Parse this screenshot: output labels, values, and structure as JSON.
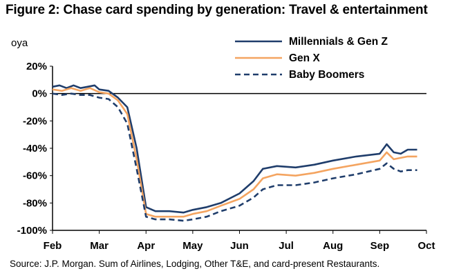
{
  "chart_data": {
    "type": "line",
    "title": "Figure 2: Chase card spending by generation: Travel & entertainment",
    "ylabel": "oya",
    "xlabel": "",
    "ylim": [
      -100,
      20
    ],
    "yticks": [
      20,
      0,
      -20,
      -40,
      -60,
      -80,
      -100
    ],
    "ytick_labels": [
      "20%",
      "0%",
      "-20%",
      "-40%",
      "-60%",
      "-80%",
      "-100%"
    ],
    "xticks": [
      "Feb",
      "Mar",
      "Apr",
      "May",
      "Jun",
      "Jul",
      "Aug",
      "Sep",
      "Oct"
    ],
    "xlim": [
      0,
      8
    ],
    "legend_position": "top-right",
    "zero_line": true,
    "grid": false,
    "source": "Source: J.P. Morgan. Sum of  Airlines, Lodging, Other T&E, and card-present Restaurants.",
    "series": [
      {
        "name": "Millennials & Gen Z",
        "color": "#1f3d6b",
        "style": "solid",
        "points": [
          [
            0,
            5
          ],
          [
            0.15,
            6
          ],
          [
            0.3,
            4
          ],
          [
            0.45,
            6
          ],
          [
            0.6,
            4
          ],
          [
            0.75,
            5
          ],
          [
            0.9,
            6
          ],
          [
            1.0,
            3
          ],
          [
            1.2,
            2
          ],
          [
            1.4,
            -3
          ],
          [
            1.6,
            -10
          ],
          [
            1.8,
            -40
          ],
          [
            2.0,
            -83
          ],
          [
            2.2,
            -86
          ],
          [
            2.5,
            -86
          ],
          [
            2.8,
            -87
          ],
          [
            3.0,
            -85
          ],
          [
            3.3,
            -83
          ],
          [
            3.6,
            -80
          ],
          [
            4.0,
            -73
          ],
          [
            4.3,
            -64
          ],
          [
            4.5,
            -55
          ],
          [
            4.8,
            -53
          ],
          [
            5.2,
            -54
          ],
          [
            5.6,
            -52
          ],
          [
            6.0,
            -49
          ],
          [
            6.5,
            -46
          ],
          [
            7.0,
            -44
          ],
          [
            7.15,
            -37
          ],
          [
            7.3,
            -43
          ],
          [
            7.45,
            -44
          ],
          [
            7.6,
            -41
          ],
          [
            7.8,
            -41
          ]
        ]
      },
      {
        "name": "Gen X",
        "color": "#f4a460",
        "style": "solid",
        "points": [
          [
            0,
            3
          ],
          [
            0.2,
            2
          ],
          [
            0.4,
            4
          ],
          [
            0.6,
            2
          ],
          [
            0.8,
            4
          ],
          [
            1.0,
            1
          ],
          [
            1.2,
            0
          ],
          [
            1.4,
            -5
          ],
          [
            1.6,
            -15
          ],
          [
            1.8,
            -48
          ],
          [
            2.0,
            -88
          ],
          [
            2.2,
            -90
          ],
          [
            2.5,
            -90
          ],
          [
            2.8,
            -90
          ],
          [
            3.0,
            -88
          ],
          [
            3.3,
            -86
          ],
          [
            3.6,
            -82
          ],
          [
            4.0,
            -77
          ],
          [
            4.3,
            -70
          ],
          [
            4.5,
            -62
          ],
          [
            4.8,
            -59
          ],
          [
            5.2,
            -60
          ],
          [
            5.6,
            -58
          ],
          [
            6.0,
            -55
          ],
          [
            6.5,
            -52
          ],
          [
            7.0,
            -49
          ],
          [
            7.15,
            -43
          ],
          [
            7.3,
            -48
          ],
          [
            7.45,
            -47
          ],
          [
            7.6,
            -46
          ],
          [
            7.8,
            -46
          ]
        ]
      },
      {
        "name": "Baby Boomers",
        "color": "#1f3d6b",
        "style": "dashed",
        "points": [
          [
            0,
            0
          ],
          [
            0.2,
            -1
          ],
          [
            0.4,
            0
          ],
          [
            0.6,
            -1
          ],
          [
            0.8,
            -1
          ],
          [
            1.0,
            -3
          ],
          [
            1.2,
            -4
          ],
          [
            1.4,
            -10
          ],
          [
            1.6,
            -22
          ],
          [
            1.8,
            -55
          ],
          [
            2.0,
            -90
          ],
          [
            2.2,
            -92
          ],
          [
            2.5,
            -92
          ],
          [
            2.8,
            -93
          ],
          [
            3.0,
            -92
          ],
          [
            3.3,
            -90
          ],
          [
            3.6,
            -86
          ],
          [
            4.0,
            -82
          ],
          [
            4.3,
            -76
          ],
          [
            4.5,
            -70
          ],
          [
            4.8,
            -67
          ],
          [
            5.2,
            -67
          ],
          [
            5.6,
            -65
          ],
          [
            6.0,
            -62
          ],
          [
            6.5,
            -59
          ],
          [
            7.0,
            -55
          ],
          [
            7.15,
            -51
          ],
          [
            7.3,
            -55
          ],
          [
            7.45,
            -57
          ],
          [
            7.6,
            -56
          ],
          [
            7.8,
            -56
          ]
        ]
      }
    ]
  }
}
